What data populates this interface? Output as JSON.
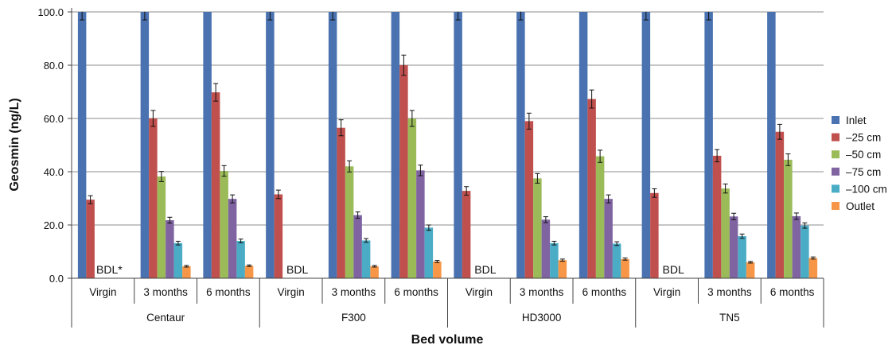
{
  "chart_data": {
    "type": "bar",
    "ylabel": "Geosmin (ng/L)",
    "xlabel": "Bed volume",
    "ylim": [
      0,
      100
    ],
    "yticks": [
      "0.0",
      "20.0",
      "40.0",
      "60.0",
      "80.0",
      "100.0"
    ],
    "grid": true,
    "legend_position": "right",
    "groups": [
      {
        "name": "Centaur",
        "categories": [
          "Virgin",
          "3 months",
          "6 months"
        ]
      },
      {
        "name": "F300",
        "categories": [
          "Virgin",
          "3 months",
          "6 months"
        ]
      },
      {
        "name": "HD3000",
        "categories": [
          "Virgin",
          "3 months",
          "6 months"
        ]
      },
      {
        "name": "TN5",
        "categories": [
          "Virgin",
          "3 months",
          "6 months"
        ]
      }
    ],
    "series": [
      {
        "name": "Inlet",
        "color": "#4A72B0",
        "values": [
          100,
          100,
          100,
          100,
          100,
          100,
          100,
          100,
          100,
          100,
          100,
          100
        ],
        "errors": [
          3,
          3,
          0,
          3,
          3,
          0,
          3,
          3,
          0,
          3,
          3,
          0
        ]
      },
      {
        "name": "–25 cm",
        "color": "#C0504D",
        "values": [
          29.5,
          60,
          69.8,
          31.5,
          56.5,
          80,
          32.8,
          59,
          67.3,
          32,
          46,
          55
        ],
        "errors": [
          1.5,
          3,
          3.3,
          1.6,
          3,
          3.8,
          1.6,
          3,
          3.4,
          1.6,
          2.3,
          2.8
        ]
      },
      {
        "name": "–50 cm",
        "color": "#9BBB59",
        "values": [
          null,
          38.2,
          40.3,
          null,
          42,
          60,
          null,
          37.5,
          45.8,
          null,
          33.7,
          44.5
        ],
        "errors": [
          null,
          1.9,
          2,
          null,
          2.1,
          3,
          null,
          1.8,
          2.3,
          null,
          1.7,
          2.2
        ]
      },
      {
        "name": "–75 cm",
        "color": "#8064A2",
        "values": [
          null,
          21.8,
          29.8,
          null,
          23.7,
          40.5,
          null,
          22,
          29.8,
          null,
          23.2,
          23.3
        ],
        "errors": [
          null,
          1.1,
          1.5,
          null,
          1.2,
          2,
          null,
          1.1,
          1.5,
          null,
          1.2,
          1.2
        ]
      },
      {
        "name": "–100 cm",
        "color": "#4BACC6",
        "values": [
          null,
          13.2,
          14,
          null,
          14.2,
          19,
          null,
          13.2,
          13,
          null,
          15.8,
          19.8
        ],
        "errors": [
          null,
          0.7,
          0.7,
          null,
          0.7,
          1,
          null,
          0.7,
          0.7,
          null,
          0.8,
          1
        ]
      },
      {
        "name": "Outlet",
        "color": "#F79646",
        "values": [
          null,
          4.5,
          4.7,
          null,
          4.5,
          6.3,
          null,
          6.8,
          7.2,
          null,
          6,
          7.6
        ],
        "errors": [
          null,
          0.3,
          0.3,
          null,
          0.3,
          0.4,
          null,
          0.4,
          0.4,
          null,
          0.3,
          0.4
        ]
      }
    ],
    "annotations": [
      "BDL*",
      "",
      "",
      "BDL",
      "",
      "",
      "BDL",
      "",
      "",
      "BDL",
      "",
      ""
    ]
  }
}
